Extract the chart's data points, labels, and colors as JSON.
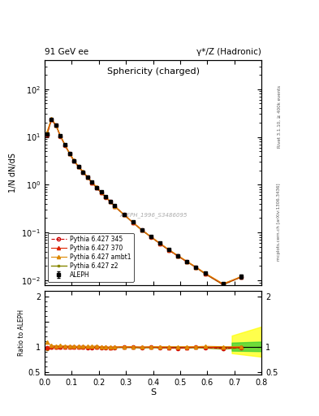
{
  "title_left": "91 GeV ee",
  "title_right": "γ*/Z (Hadronic)",
  "plot_title": "Sphericity (charged)",
  "ylabel_main": "1/N dN/dS",
  "ylabel_ratio": "Ratio to ALEPH",
  "xlabel": "S",
  "watermark": "ALEPH_1996_S3486095",
  "right_label_top": "Rivet 3.1.10, ≥ 400k events",
  "right_label_bottom": "mcplots.cern.ch [arXiv:1306.3436]",
  "S_centers": [
    0.008,
    0.025,
    0.042,
    0.058,
    0.075,
    0.092,
    0.108,
    0.125,
    0.142,
    0.158,
    0.175,
    0.192,
    0.208,
    0.225,
    0.242,
    0.258,
    0.292,
    0.325,
    0.358,
    0.392,
    0.425,
    0.458,
    0.492,
    0.525,
    0.558,
    0.592,
    0.658,
    0.725
  ],
  "aleph_y": [
    11.5,
    23.5,
    17.5,
    10.5,
    6.8,
    4.5,
    3.2,
    2.4,
    1.85,
    1.45,
    1.12,
    0.88,
    0.7,
    0.56,
    0.45,
    0.36,
    0.24,
    0.165,
    0.115,
    0.082,
    0.06,
    0.044,
    0.033,
    0.025,
    0.019,
    0.014,
    0.0085,
    0.012
  ],
  "aleph_yerr": [
    0.3,
    0.5,
    0.4,
    0.25,
    0.18,
    0.12,
    0.09,
    0.07,
    0.05,
    0.04,
    0.03,
    0.025,
    0.02,
    0.016,
    0.013,
    0.01,
    0.008,
    0.006,
    0.004,
    0.003,
    0.002,
    0.002,
    0.0015,
    0.001,
    0.0008,
    0.0006,
    0.0005,
    0.001
  ],
  "py345_y": [
    11.2,
    23.2,
    17.3,
    10.4,
    6.75,
    4.48,
    3.18,
    2.38,
    1.83,
    1.43,
    1.1,
    0.87,
    0.69,
    0.55,
    0.44,
    0.355,
    0.238,
    0.163,
    0.113,
    0.081,
    0.059,
    0.043,
    0.032,
    0.0245,
    0.0188,
    0.0138,
    0.0082,
    0.0118
  ],
  "py370_y": [
    11.3,
    23.3,
    17.4,
    10.45,
    6.77,
    4.49,
    3.19,
    2.39,
    1.84,
    1.44,
    1.11,
    0.875,
    0.695,
    0.553,
    0.442,
    0.357,
    0.239,
    0.164,
    0.114,
    0.0815,
    0.0592,
    0.0432,
    0.0322,
    0.0246,
    0.0189,
    0.0139,
    0.0083,
    0.0119
  ],
  "pyambt1_y": [
    12.5,
    24.0,
    17.8,
    10.7,
    6.9,
    4.55,
    3.22,
    2.41,
    1.86,
    1.46,
    1.13,
    0.89,
    0.7,
    0.56,
    0.445,
    0.358,
    0.24,
    0.165,
    0.114,
    0.082,
    0.06,
    0.044,
    0.033,
    0.025,
    0.019,
    0.0141,
    0.0085,
    0.012
  ],
  "pyz2_y": [
    10.8,
    23.0,
    17.2,
    10.35,
    6.72,
    4.46,
    3.17,
    2.37,
    1.82,
    1.42,
    1.09,
    0.865,
    0.688,
    0.548,
    0.438,
    0.353,
    0.236,
    0.162,
    0.112,
    0.0805,
    0.0585,
    0.0428,
    0.032,
    0.0243,
    0.0186,
    0.0136,
    0.0081,
    0.0117
  ],
  "color_aleph": "#000000",
  "color_py345": "#cc0000",
  "color_py370": "#dd2200",
  "color_pyambt1": "#dd8800",
  "color_pyz2": "#888800",
  "xlim": [
    0.0,
    0.8
  ],
  "ylim_main": [
    0.008,
    400
  ],
  "ylim_ratio": [
    0.45,
    2.1
  ]
}
